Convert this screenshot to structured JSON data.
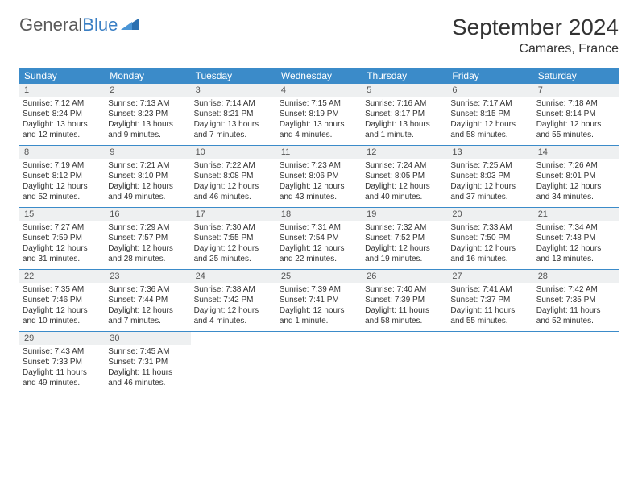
{
  "logo": {
    "general": "General",
    "blue": "Blue"
  },
  "title": "September 2024",
  "location": "Camares, France",
  "colors": {
    "header_bg": "#3b8bc9",
    "header_text": "#ffffff",
    "daynum_bg": "#eef0f1",
    "border": "#3b8bc9",
    "logo_gray": "#5a5a5a",
    "logo_blue": "#3a7fc4"
  },
  "weekday_headers": [
    "Sunday",
    "Monday",
    "Tuesday",
    "Wednesday",
    "Thursday",
    "Friday",
    "Saturday"
  ],
  "weeks": [
    [
      {
        "n": "1",
        "sr": "Sunrise: 7:12 AM",
        "ss": "Sunset: 8:24 PM",
        "d1": "Daylight: 13 hours",
        "d2": "and 12 minutes."
      },
      {
        "n": "2",
        "sr": "Sunrise: 7:13 AM",
        "ss": "Sunset: 8:23 PM",
        "d1": "Daylight: 13 hours",
        "d2": "and 9 minutes."
      },
      {
        "n": "3",
        "sr": "Sunrise: 7:14 AM",
        "ss": "Sunset: 8:21 PM",
        "d1": "Daylight: 13 hours",
        "d2": "and 7 minutes."
      },
      {
        "n": "4",
        "sr": "Sunrise: 7:15 AM",
        "ss": "Sunset: 8:19 PM",
        "d1": "Daylight: 13 hours",
        "d2": "and 4 minutes."
      },
      {
        "n": "5",
        "sr": "Sunrise: 7:16 AM",
        "ss": "Sunset: 8:17 PM",
        "d1": "Daylight: 13 hours",
        "d2": "and 1 minute."
      },
      {
        "n": "6",
        "sr": "Sunrise: 7:17 AM",
        "ss": "Sunset: 8:15 PM",
        "d1": "Daylight: 12 hours",
        "d2": "and 58 minutes."
      },
      {
        "n": "7",
        "sr": "Sunrise: 7:18 AM",
        "ss": "Sunset: 8:14 PM",
        "d1": "Daylight: 12 hours",
        "d2": "and 55 minutes."
      }
    ],
    [
      {
        "n": "8",
        "sr": "Sunrise: 7:19 AM",
        "ss": "Sunset: 8:12 PM",
        "d1": "Daylight: 12 hours",
        "d2": "and 52 minutes."
      },
      {
        "n": "9",
        "sr": "Sunrise: 7:21 AM",
        "ss": "Sunset: 8:10 PM",
        "d1": "Daylight: 12 hours",
        "d2": "and 49 minutes."
      },
      {
        "n": "10",
        "sr": "Sunrise: 7:22 AM",
        "ss": "Sunset: 8:08 PM",
        "d1": "Daylight: 12 hours",
        "d2": "and 46 minutes."
      },
      {
        "n": "11",
        "sr": "Sunrise: 7:23 AM",
        "ss": "Sunset: 8:06 PM",
        "d1": "Daylight: 12 hours",
        "d2": "and 43 minutes."
      },
      {
        "n": "12",
        "sr": "Sunrise: 7:24 AM",
        "ss": "Sunset: 8:05 PM",
        "d1": "Daylight: 12 hours",
        "d2": "and 40 minutes."
      },
      {
        "n": "13",
        "sr": "Sunrise: 7:25 AM",
        "ss": "Sunset: 8:03 PM",
        "d1": "Daylight: 12 hours",
        "d2": "and 37 minutes."
      },
      {
        "n": "14",
        "sr": "Sunrise: 7:26 AM",
        "ss": "Sunset: 8:01 PM",
        "d1": "Daylight: 12 hours",
        "d2": "and 34 minutes."
      }
    ],
    [
      {
        "n": "15",
        "sr": "Sunrise: 7:27 AM",
        "ss": "Sunset: 7:59 PM",
        "d1": "Daylight: 12 hours",
        "d2": "and 31 minutes."
      },
      {
        "n": "16",
        "sr": "Sunrise: 7:29 AM",
        "ss": "Sunset: 7:57 PM",
        "d1": "Daylight: 12 hours",
        "d2": "and 28 minutes."
      },
      {
        "n": "17",
        "sr": "Sunrise: 7:30 AM",
        "ss": "Sunset: 7:55 PM",
        "d1": "Daylight: 12 hours",
        "d2": "and 25 minutes."
      },
      {
        "n": "18",
        "sr": "Sunrise: 7:31 AM",
        "ss": "Sunset: 7:54 PM",
        "d1": "Daylight: 12 hours",
        "d2": "and 22 minutes."
      },
      {
        "n": "19",
        "sr": "Sunrise: 7:32 AM",
        "ss": "Sunset: 7:52 PM",
        "d1": "Daylight: 12 hours",
        "d2": "and 19 minutes."
      },
      {
        "n": "20",
        "sr": "Sunrise: 7:33 AM",
        "ss": "Sunset: 7:50 PM",
        "d1": "Daylight: 12 hours",
        "d2": "and 16 minutes."
      },
      {
        "n": "21",
        "sr": "Sunrise: 7:34 AM",
        "ss": "Sunset: 7:48 PM",
        "d1": "Daylight: 12 hours",
        "d2": "and 13 minutes."
      }
    ],
    [
      {
        "n": "22",
        "sr": "Sunrise: 7:35 AM",
        "ss": "Sunset: 7:46 PM",
        "d1": "Daylight: 12 hours",
        "d2": "and 10 minutes."
      },
      {
        "n": "23",
        "sr": "Sunrise: 7:36 AM",
        "ss": "Sunset: 7:44 PM",
        "d1": "Daylight: 12 hours",
        "d2": "and 7 minutes."
      },
      {
        "n": "24",
        "sr": "Sunrise: 7:38 AM",
        "ss": "Sunset: 7:42 PM",
        "d1": "Daylight: 12 hours",
        "d2": "and 4 minutes."
      },
      {
        "n": "25",
        "sr": "Sunrise: 7:39 AM",
        "ss": "Sunset: 7:41 PM",
        "d1": "Daylight: 12 hours",
        "d2": "and 1 minute."
      },
      {
        "n": "26",
        "sr": "Sunrise: 7:40 AM",
        "ss": "Sunset: 7:39 PM",
        "d1": "Daylight: 11 hours",
        "d2": "and 58 minutes."
      },
      {
        "n": "27",
        "sr": "Sunrise: 7:41 AM",
        "ss": "Sunset: 7:37 PM",
        "d1": "Daylight: 11 hours",
        "d2": "and 55 minutes."
      },
      {
        "n": "28",
        "sr": "Sunrise: 7:42 AM",
        "ss": "Sunset: 7:35 PM",
        "d1": "Daylight: 11 hours",
        "d2": "and 52 minutes."
      }
    ],
    [
      {
        "n": "29",
        "sr": "Sunrise: 7:43 AM",
        "ss": "Sunset: 7:33 PM",
        "d1": "Daylight: 11 hours",
        "d2": "and 49 minutes."
      },
      {
        "n": "30",
        "sr": "Sunrise: 7:45 AM",
        "ss": "Sunset: 7:31 PM",
        "d1": "Daylight: 11 hours",
        "d2": "and 46 minutes."
      },
      null,
      null,
      null,
      null,
      null
    ]
  ]
}
